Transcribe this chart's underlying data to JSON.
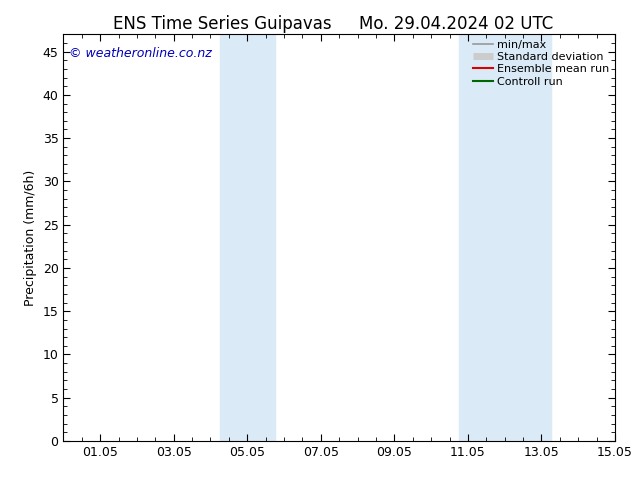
{
  "title_left": "ENS Time Series Guipavas",
  "title_right": "Mo. 29.04.2024 02 UTC",
  "ylabel": "Precipitation (mm/6h)",
  "xlim": [
    0,
    15
  ],
  "ylim": [
    0,
    47
  ],
  "yticks": [
    0,
    5,
    10,
    15,
    20,
    25,
    30,
    35,
    40,
    45
  ],
  "xtick_positions": [
    1,
    3,
    5,
    7,
    9,
    11,
    13,
    15
  ],
  "xtick_labels": [
    "01.05",
    "03.05",
    "05.05",
    "07.05",
    "09.05",
    "11.05",
    "13.05",
    "15.05"
  ],
  "shaded_bands": [
    {
      "x_start": 4.25,
      "x_end": 5.75
    },
    {
      "x_start": 10.75,
      "x_end": 13.25
    }
  ],
  "shaded_color": "#daeaf7",
  "background_color": "#ffffff",
  "title_fontsize": 12,
  "axis_fontsize": 9,
  "watermark_text": "© weatheronline.co.nz",
  "watermark_color": "#0000bb",
  "watermark_fontsize": 9,
  "legend_items": [
    {
      "label": "min/max",
      "color": "#999999",
      "linewidth": 1.2,
      "linestyle": "-",
      "type": "line"
    },
    {
      "label": "Standard deviation",
      "color": "#cccccc",
      "linewidth": 5,
      "linestyle": "-",
      "type": "band"
    },
    {
      "label": "Ensemble mean run",
      "color": "#dd0000",
      "linewidth": 1.5,
      "linestyle": "-",
      "type": "line"
    },
    {
      "label": "Controll run",
      "color": "#006600",
      "linewidth": 1.5,
      "linestyle": "-",
      "type": "line"
    }
  ]
}
